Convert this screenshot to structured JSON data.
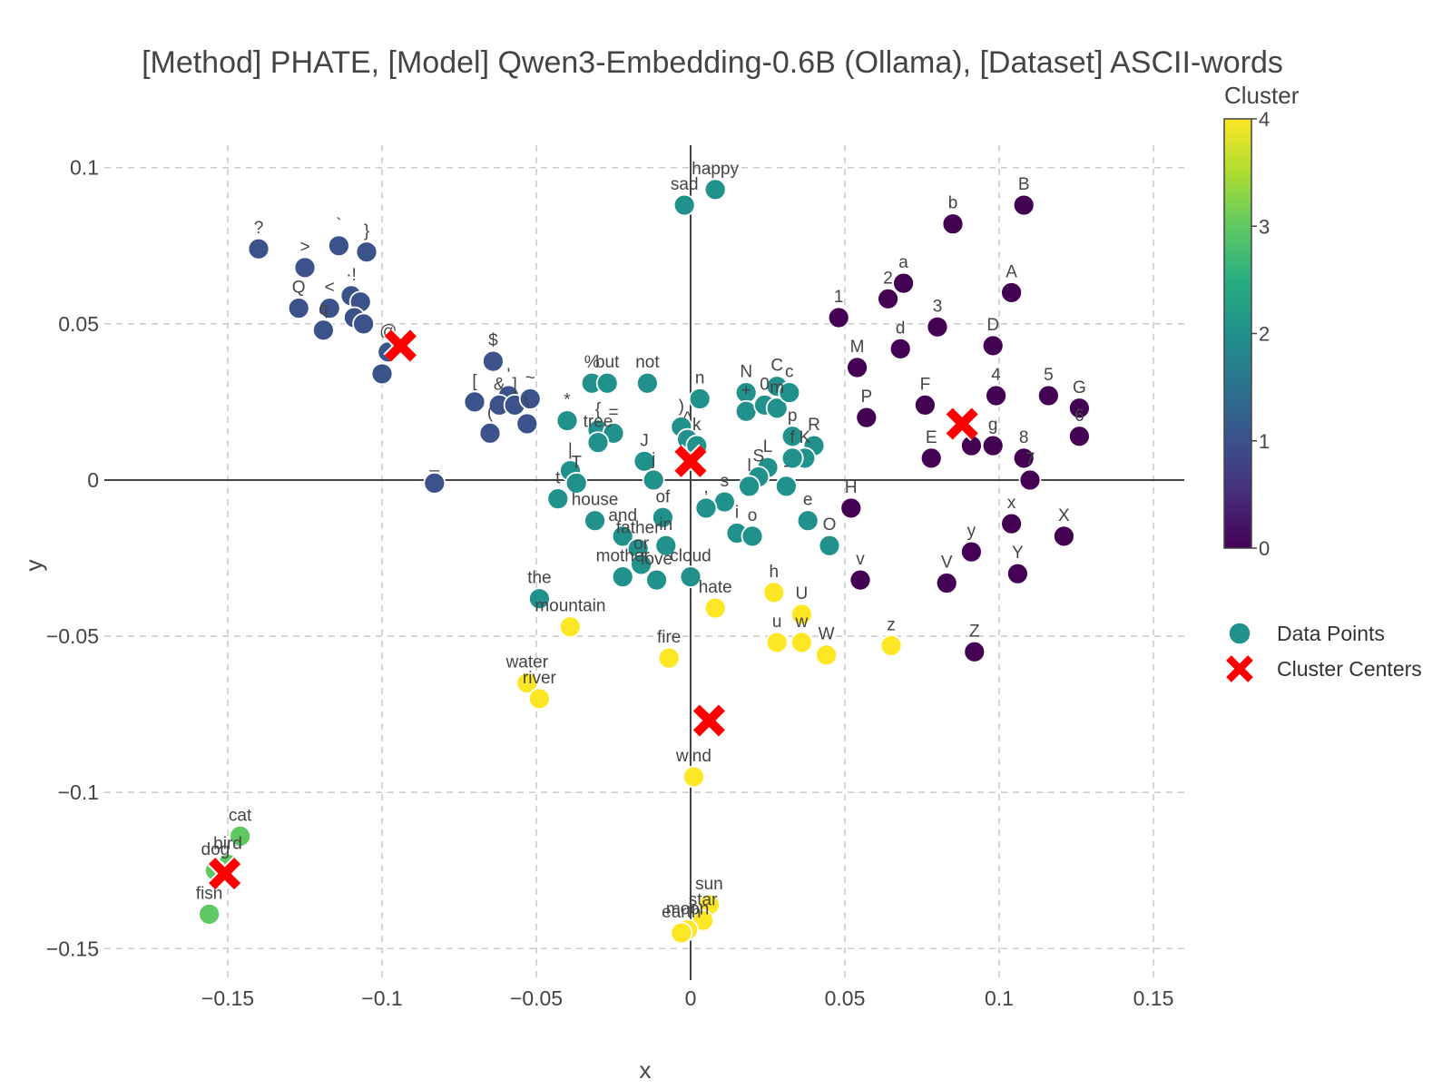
{
  "chart_data": {
    "type": "scatter",
    "title": "[Method] PHATE, [Model] Qwen3-Embedding-0.6B (Ollama), [Dataset] ASCII-words",
    "xlabel": "x",
    "ylabel": "y",
    "xlim": [
      -0.19,
      0.16
    ],
    "ylim": [
      -0.163,
      0.113
    ],
    "x_ticks": [
      -0.15,
      -0.1,
      -0.05,
      0,
      0.05,
      0.1,
      0.15
    ],
    "x_tick_labels": [
      "−0.15",
      "−0.1",
      "−0.05",
      "0",
      "0.05",
      "0.1",
      "0.15"
    ],
    "y_ticks": [
      0.1,
      0.05,
      0,
      -0.05,
      -0.1,
      -0.15
    ],
    "y_tick_labels": [
      "0.1",
      "0.05",
      "0",
      "−0.05",
      "−0.1",
      "−0.15"
    ],
    "grid": true,
    "colorscale": "viridis",
    "colorbar": {
      "title": "Cluster",
      "range": [
        0,
        4
      ],
      "ticks": [
        0,
        1,
        2,
        3,
        4
      ],
      "tick_labels": [
        "0",
        "1",
        "2",
        "3",
        "4"
      ]
    },
    "legend": {
      "position": "right",
      "entries": [
        "Data Points",
        "Cluster Centers"
      ]
    },
    "legend_marker_color": "#21918c",
    "center_color": "#ff0000",
    "cluster_colors": [
      "#440154",
      "#3b528b",
      "#21918c",
      "#5ec962",
      "#fde725"
    ],
    "series": [
      {
        "name": "Data Points",
        "points": [
          {
            "label": "?",
            "x": -0.14,
            "y": 0.074,
            "c": 1
          },
          {
            "label": ">",
            "x": -0.125,
            "y": 0.068,
            "c": 1
          },
          {
            "label": "`",
            "x": -0.114,
            "y": 0.075,
            "c": 1
          },
          {
            "label": "}",
            "x": -0.105,
            "y": 0.073,
            "c": 1
          },
          {
            "label": "Q",
            "x": -0.127,
            "y": 0.055,
            "c": 1
          },
          {
            "label": "<",
            "x": -0.117,
            "y": 0.055,
            "c": 1
          },
          {
            "label": "q",
            "x": -0.119,
            "y": 0.048,
            "c": 1
          },
          {
            "label": "·!",
            "x": -0.11,
            "y": 0.059,
            "c": 1
          },
          {
            "label": "",
            "x": -0.107,
            "y": 0.057,
            "c": 1
          },
          {
            "label": "",
            "x": -0.109,
            "y": 0.052,
            "c": 1
          },
          {
            "label": "",
            "x": -0.106,
            "y": 0.05,
            "c": 1
          },
          {
            "label": "@",
            "x": -0.098,
            "y": 0.041,
            "c": 1
          },
          {
            "label": "",
            "x": -0.1,
            "y": 0.034,
            "c": 1
          },
          {
            "label": "$",
            "x": -0.064,
            "y": 0.038,
            "c": 1
          },
          {
            "label": "[",
            "x": -0.07,
            "y": 0.025,
            "c": 1
          },
          {
            "label": "'",
            "x": -0.059,
            "y": 0.027,
            "c": 1
          },
          {
            "label": "&",
            "x": -0.062,
            "y": 0.024,
            "c": 1
          },
          {
            "label": "]",
            "x": -0.057,
            "y": 0.024,
            "c": 1
          },
          {
            "label": "~",
            "x": -0.052,
            "y": 0.026,
            "c": 1
          },
          {
            "label": "(",
            "x": -0.065,
            "y": 0.015,
            "c": 1
          },
          {
            "label": "\\",
            "x": -0.053,
            "y": 0.018,
            "c": 1
          },
          {
            "label": "_",
            "x": -0.083,
            "y": -0.001,
            "c": 1
          },
          {
            "label": "sad",
            "x": -0.002,
            "y": 0.088,
            "c": 2
          },
          {
            "label": "happy",
            "x": 0.008,
            "y": 0.093,
            "c": 2
          },
          {
            "label": "%",
            "x": -0.032,
            "y": 0.031,
            "c": 2
          },
          {
            "label": "but",
            "x": -0.027,
            "y": 0.031,
            "c": 2
          },
          {
            "label": "not",
            "x": -0.014,
            "y": 0.031,
            "c": 2
          },
          {
            "label": "*",
            "x": -0.04,
            "y": 0.019,
            "c": 2
          },
          {
            "label": "{",
            "x": -0.03,
            "y": 0.016,
            "c": 2
          },
          {
            "label": "=",
            "x": -0.025,
            "y": 0.015,
            "c": 2
          },
          {
            "label": "tree",
            "x": -0.03,
            "y": 0.012,
            "c": 2
          },
          {
            "label": "|",
            "x": -0.039,
            "y": 0.003,
            "c": 2
          },
          {
            "label": "T",
            "x": -0.037,
            "y": -0.001,
            "c": 2
          },
          {
            "label": "t",
            "x": -0.043,
            "y": -0.006,
            "c": 2
          },
          {
            "label": "house",
            "x": -0.031,
            "y": -0.013,
            "c": 2
          },
          {
            "label": "J",
            "x": -0.015,
            "y": 0.006,
            "c": 2
          },
          {
            "label": "j",
            "x": -0.012,
            "y": 0.0,
            "c": 2
          },
          {
            "label": "n",
            "x": 0.003,
            "y": 0.026,
            "c": 2
          },
          {
            "label": ")",
            "x": -0.003,
            "y": 0.017,
            "c": 2
          },
          {
            "label": "^",
            "x": -0.001,
            "y": 0.013,
            "c": 2
          },
          {
            "label": "k",
            "x": 0.002,
            "y": 0.011,
            "c": 2
          },
          {
            "label": "of",
            "x": -0.009,
            "y": -0.012,
            "c": 2
          },
          {
            "label": "and",
            "x": -0.022,
            "y": -0.018,
            "c": 2
          },
          {
            "label": "father",
            "x": -0.017,
            "y": -0.022,
            "c": 2
          },
          {
            "label": "in",
            "x": -0.008,
            "y": -0.021,
            "c": 2
          },
          {
            "label": "or",
            "x": -0.016,
            "y": -0.027,
            "c": 2
          },
          {
            "label": "mother",
            "x": -0.022,
            "y": -0.031,
            "c": 2
          },
          {
            "label": "love",
            "x": -0.011,
            "y": -0.032,
            "c": 2
          },
          {
            "label": "cloud",
            "x": 0.0,
            "y": -0.031,
            "c": 2
          },
          {
            "label": "the",
            "x": -0.049,
            "y": -0.038,
            "c": 2
          },
          {
            "label": "N",
            "x": 0.018,
            "y": 0.028,
            "c": 2
          },
          {
            "label": "+",
            "x": 0.018,
            "y": 0.022,
            "c": 2
          },
          {
            "label": "0",
            "x": 0.024,
            "y": 0.024,
            "c": 2
          },
          {
            "label": "C",
            "x": 0.028,
            "y": 0.03,
            "c": 2
          },
          {
            "label": "m",
            "x": 0.028,
            "y": 0.023,
            "c": 2
          },
          {
            "label": "c",
            "x": 0.032,
            "y": 0.028,
            "c": 2
          },
          {
            "label": "p",
            "x": 0.033,
            "y": 0.014,
            "c": 2
          },
          {
            "label": "R",
            "x": 0.04,
            "y": 0.011,
            "c": 2
          },
          {
            "label": "K",
            "x": 0.037,
            "y": 0.007,
            "c": 2
          },
          {
            "label": "f",
            "x": 0.033,
            "y": 0.007,
            "c": 2
          },
          {
            "label": "L",
            "x": 0.025,
            "y": 0.004,
            "c": 2
          },
          {
            "label": "S",
            "x": 0.022,
            "y": 0.001,
            "c": 2
          },
          {
            "label": "l",
            "x": 0.019,
            "y": -0.002,
            "c": 2
          },
          {
            "label": "-",
            "x": 0.031,
            "y": -0.002,
            "c": 2
          },
          {
            "label": "s",
            "x": 0.011,
            "y": -0.007,
            "c": 2
          },
          {
            "label": ",",
            "x": 0.005,
            "y": -0.009,
            "c": 2
          },
          {
            "label": "e",
            "x": 0.038,
            "y": -0.013,
            "c": 2
          },
          {
            "label": "i",
            "x": 0.015,
            "y": -0.017,
            "c": 2
          },
          {
            "label": "o",
            "x": 0.02,
            "y": -0.018,
            "c": 2
          },
          {
            "label": "O",
            "x": 0.045,
            "y": -0.021,
            "c": 2
          },
          {
            "label": "cat",
            "x": -0.146,
            "y": -0.114,
            "c": 3
          },
          {
            "label": "bird",
            "x": -0.15,
            "y": -0.123,
            "c": 3
          },
          {
            "label": "dog",
            "x": -0.154,
            "y": -0.125,
            "c": 3
          },
          {
            "label": "fish",
            "x": -0.156,
            "y": -0.139,
            "c": 3
          },
          {
            "label": "mountain",
            "x": -0.039,
            "y": -0.047,
            "c": 4
          },
          {
            "label": "water",
            "x": -0.053,
            "y": -0.065,
            "c": 4
          },
          {
            "label": "river",
            "x": -0.049,
            "y": -0.07,
            "c": 4
          },
          {
            "label": "fire",
            "x": -0.007,
            "y": -0.057,
            "c": 4
          },
          {
            "label": "hate",
            "x": 0.008,
            "y": -0.041,
            "c": 4
          },
          {
            "label": "h",
            "x": 0.027,
            "y": -0.036,
            "c": 4
          },
          {
            "label": "U",
            "x": 0.036,
            "y": -0.043,
            "c": 4
          },
          {
            "label": "u",
            "x": 0.028,
            "y": -0.052,
            "c": 4
          },
          {
            "label": "w",
            "x": 0.036,
            "y": -0.052,
            "c": 4
          },
          {
            "label": "W",
            "x": 0.044,
            "y": -0.056,
            "c": 4
          },
          {
            "label": "z",
            "x": 0.065,
            "y": -0.053,
            "c": 4
          },
          {
            "label": "wind",
            "x": 0.001,
            "y": -0.095,
            "c": 4
          },
          {
            "label": "sun",
            "x": 0.006,
            "y": -0.136,
            "c": 4
          },
          {
            "label": "star",
            "x": 0.004,
            "y": -0.141,
            "c": 4
          },
          {
            "label": "moon",
            "x": -0.001,
            "y": -0.144,
            "c": 4
          },
          {
            "label": "earth",
            "x": -0.003,
            "y": -0.145,
            "c": 4
          },
          {
            "label": "b",
            "x": 0.085,
            "y": 0.082,
            "c": 0
          },
          {
            "label": "B",
            "x": 0.108,
            "y": 0.088,
            "c": 0
          },
          {
            "label": "a",
            "x": 0.069,
            "y": 0.063,
            "c": 0
          },
          {
            "label": "2",
            "x": 0.064,
            "y": 0.058,
            "c": 0
          },
          {
            "label": "1",
            "x": 0.048,
            "y": 0.052,
            "c": 0
          },
          {
            "label": "3",
            "x": 0.08,
            "y": 0.049,
            "c": 0
          },
          {
            "label": "A",
            "x": 0.104,
            "y": 0.06,
            "c": 0
          },
          {
            "label": "d",
            "x": 0.068,
            "y": 0.042,
            "c": 0
          },
          {
            "label": "D",
            "x": 0.098,
            "y": 0.043,
            "c": 0
          },
          {
            "label": "M",
            "x": 0.054,
            "y": 0.036,
            "c": 0
          },
          {
            "label": "P",
            "x": 0.057,
            "y": 0.02,
            "c": 0
          },
          {
            "label": "F",
            "x": 0.076,
            "y": 0.024,
            "c": 0
          },
          {
            "label": "4",
            "x": 0.099,
            "y": 0.027,
            "c": 0
          },
          {
            "label": "5",
            "x": 0.116,
            "y": 0.027,
            "c": 0
          },
          {
            "label": "G",
            "x": 0.126,
            "y": 0.023,
            "c": 0
          },
          {
            "label": "6",
            "x": 0.126,
            "y": 0.014,
            "c": 0
          },
          {
            "label": "E",
            "x": 0.078,
            "y": 0.007,
            "c": 0
          },
          {
            "label": "g",
            "x": 0.098,
            "y": 0.011,
            "c": 0
          },
          {
            "label": "",
            "x": 0.091,
            "y": 0.011,
            "c": 0
          },
          {
            "label": "8",
            "x": 0.108,
            "y": 0.007,
            "c": 0
          },
          {
            "label": "7",
            "x": 0.11,
            "y": 0.0,
            "c": 0
          },
          {
            "label": "H",
            "x": 0.052,
            "y": -0.009,
            "c": 0
          },
          {
            "label": "x",
            "x": 0.104,
            "y": -0.014,
            "c": 0
          },
          {
            "label": "X",
            "x": 0.121,
            "y": -0.018,
            "c": 0
          },
          {
            "label": "y",
            "x": 0.091,
            "y": -0.023,
            "c": 0
          },
          {
            "label": "Y",
            "x": 0.106,
            "y": -0.03,
            "c": 0
          },
          {
            "label": "V",
            "x": 0.083,
            "y": -0.033,
            "c": 0
          },
          {
            "label": "v",
            "x": 0.055,
            "y": -0.032,
            "c": 0
          },
          {
            "label": "Z",
            "x": 0.092,
            "y": -0.055,
            "c": 0
          }
        ]
      },
      {
        "name": "Cluster Centers",
        "points": [
          {
            "x": -0.094,
            "y": 0.043
          },
          {
            "x": 0.0,
            "y": 0.006
          },
          {
            "x": 0.088,
            "y": 0.018
          },
          {
            "x": 0.006,
            "y": -0.077
          },
          {
            "x": -0.151,
            "y": -0.126
          }
        ]
      }
    ]
  }
}
